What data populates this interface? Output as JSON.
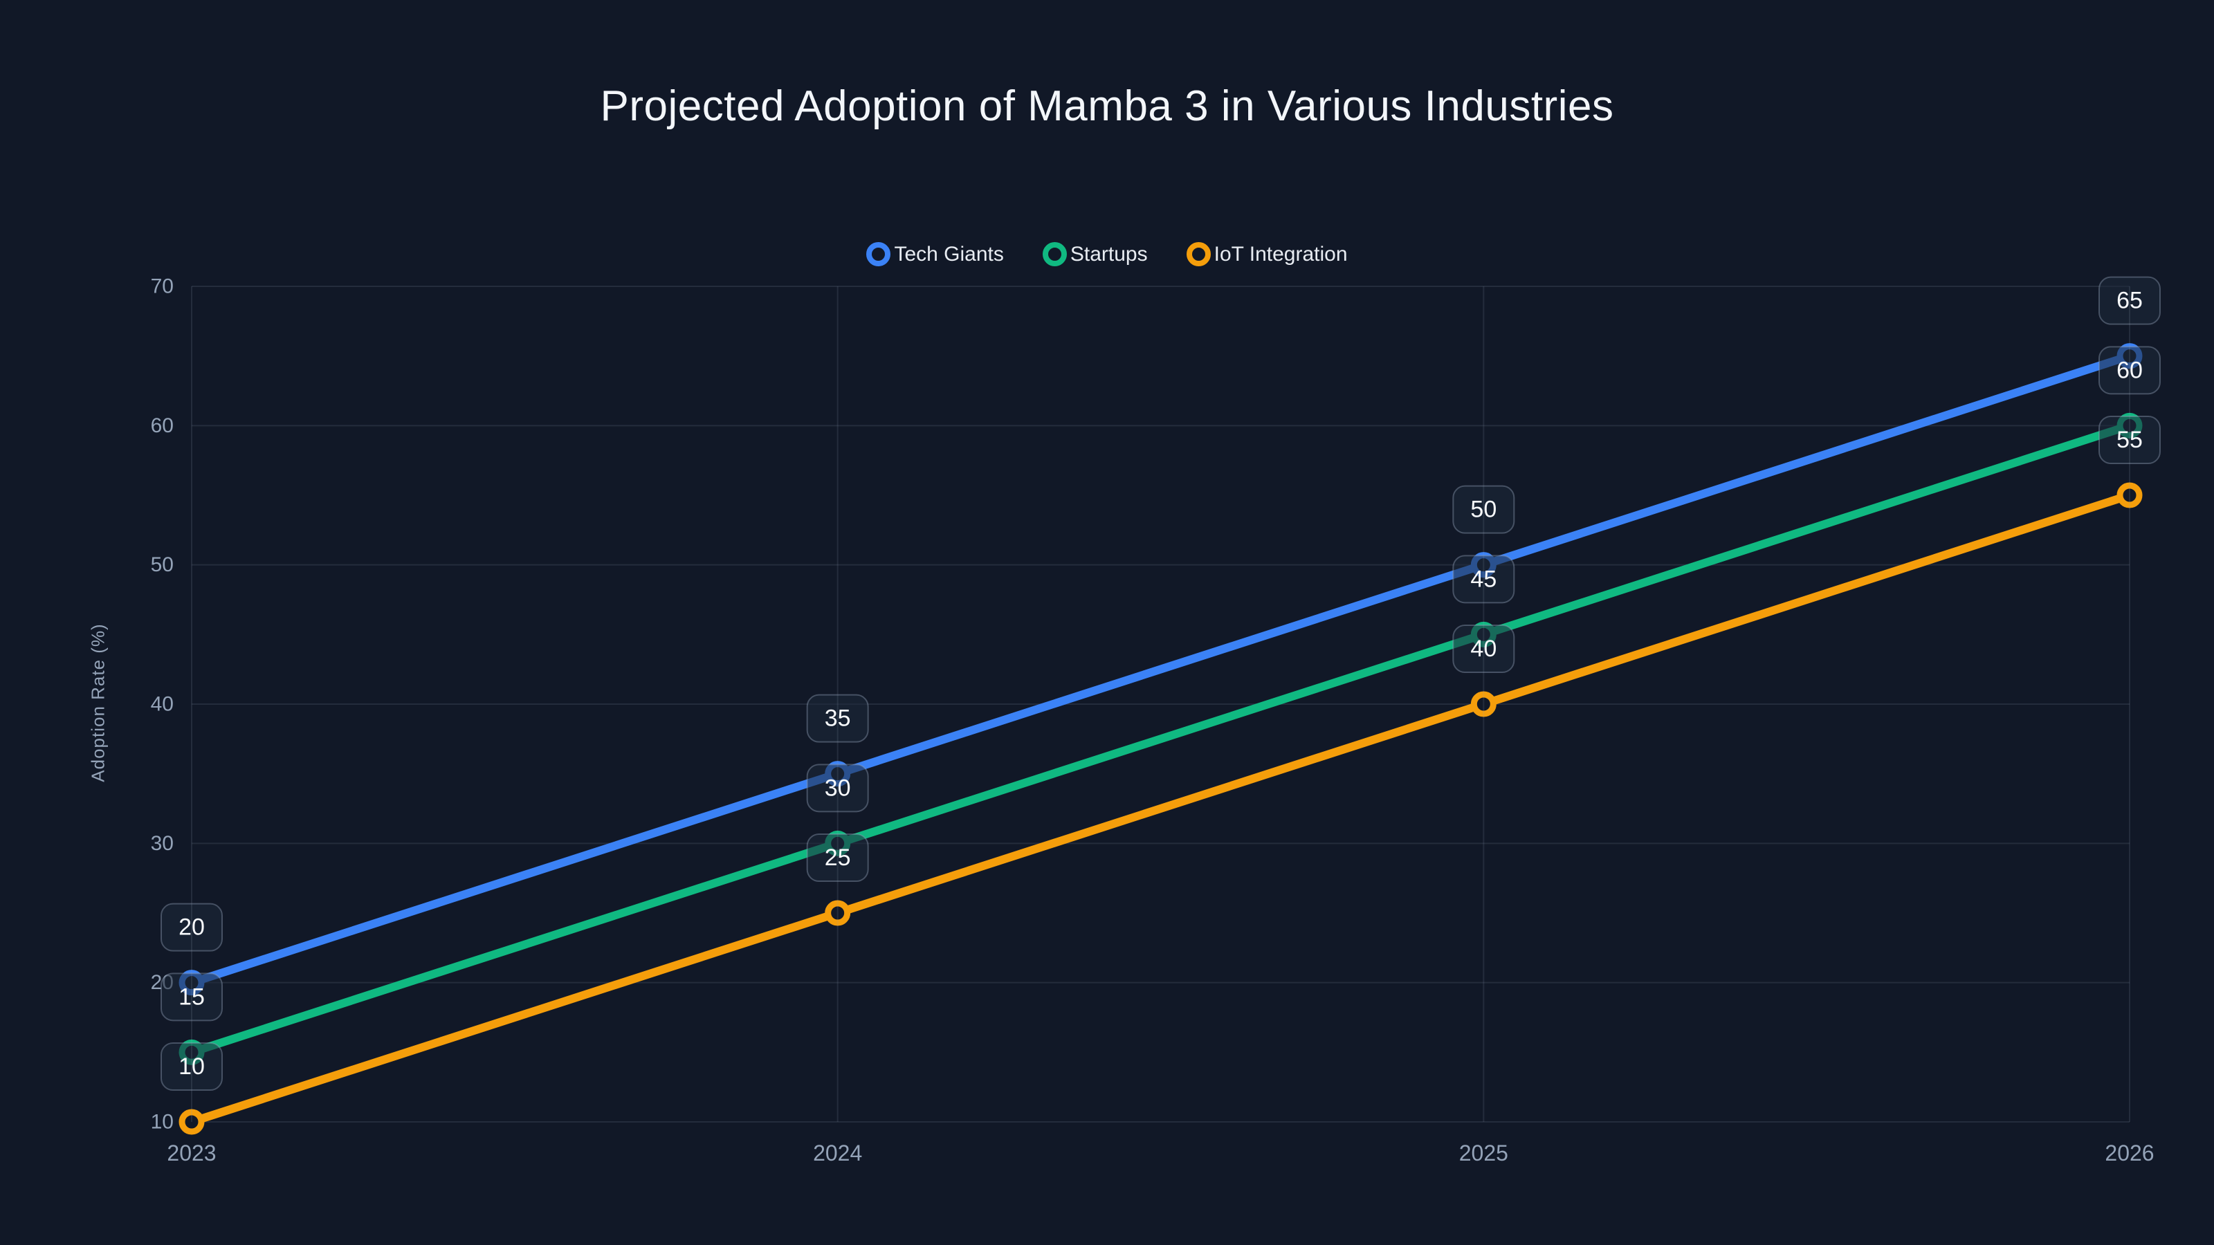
{
  "title": "Projected Adoption of Mamba 3 in Various Industries",
  "colors": {
    "background": "#111827",
    "grid": "rgba(148,163,184,0.15)",
    "tick_label": "#94a3b8",
    "title": "#f3f6fa",
    "data_label_text": "#f8fafc",
    "data_label_box_fill": "rgba(30,41,59,0.55)",
    "data_label_box_border": "rgba(148,163,184,0.4)"
  },
  "chart_data": {
    "type": "line",
    "categories": [
      "2023",
      "2024",
      "2025",
      "2026"
    ],
    "series": [
      {
        "name": "Tech Giants",
        "color": "#3b82f6",
        "values": [
          20,
          35,
          50,
          65
        ]
      },
      {
        "name": "Startups",
        "color": "#10b981",
        "values": [
          15,
          30,
          45,
          60
        ]
      },
      {
        "name": "IoT Integration",
        "color": "#f59e0b",
        "values": [
          10,
          25,
          40,
          55
        ]
      }
    ],
    "title": "Projected Adoption of Mamba 3 in Various Industries",
    "xlabel": "",
    "ylabel": "Adoption Rate (%)",
    "ylim": [
      10,
      70
    ],
    "y_ticks": [
      10,
      20,
      30,
      40,
      50,
      60,
      70
    ],
    "grid": true,
    "legend_position": "top-center",
    "marker_style": "ring",
    "data_labels": true
  }
}
